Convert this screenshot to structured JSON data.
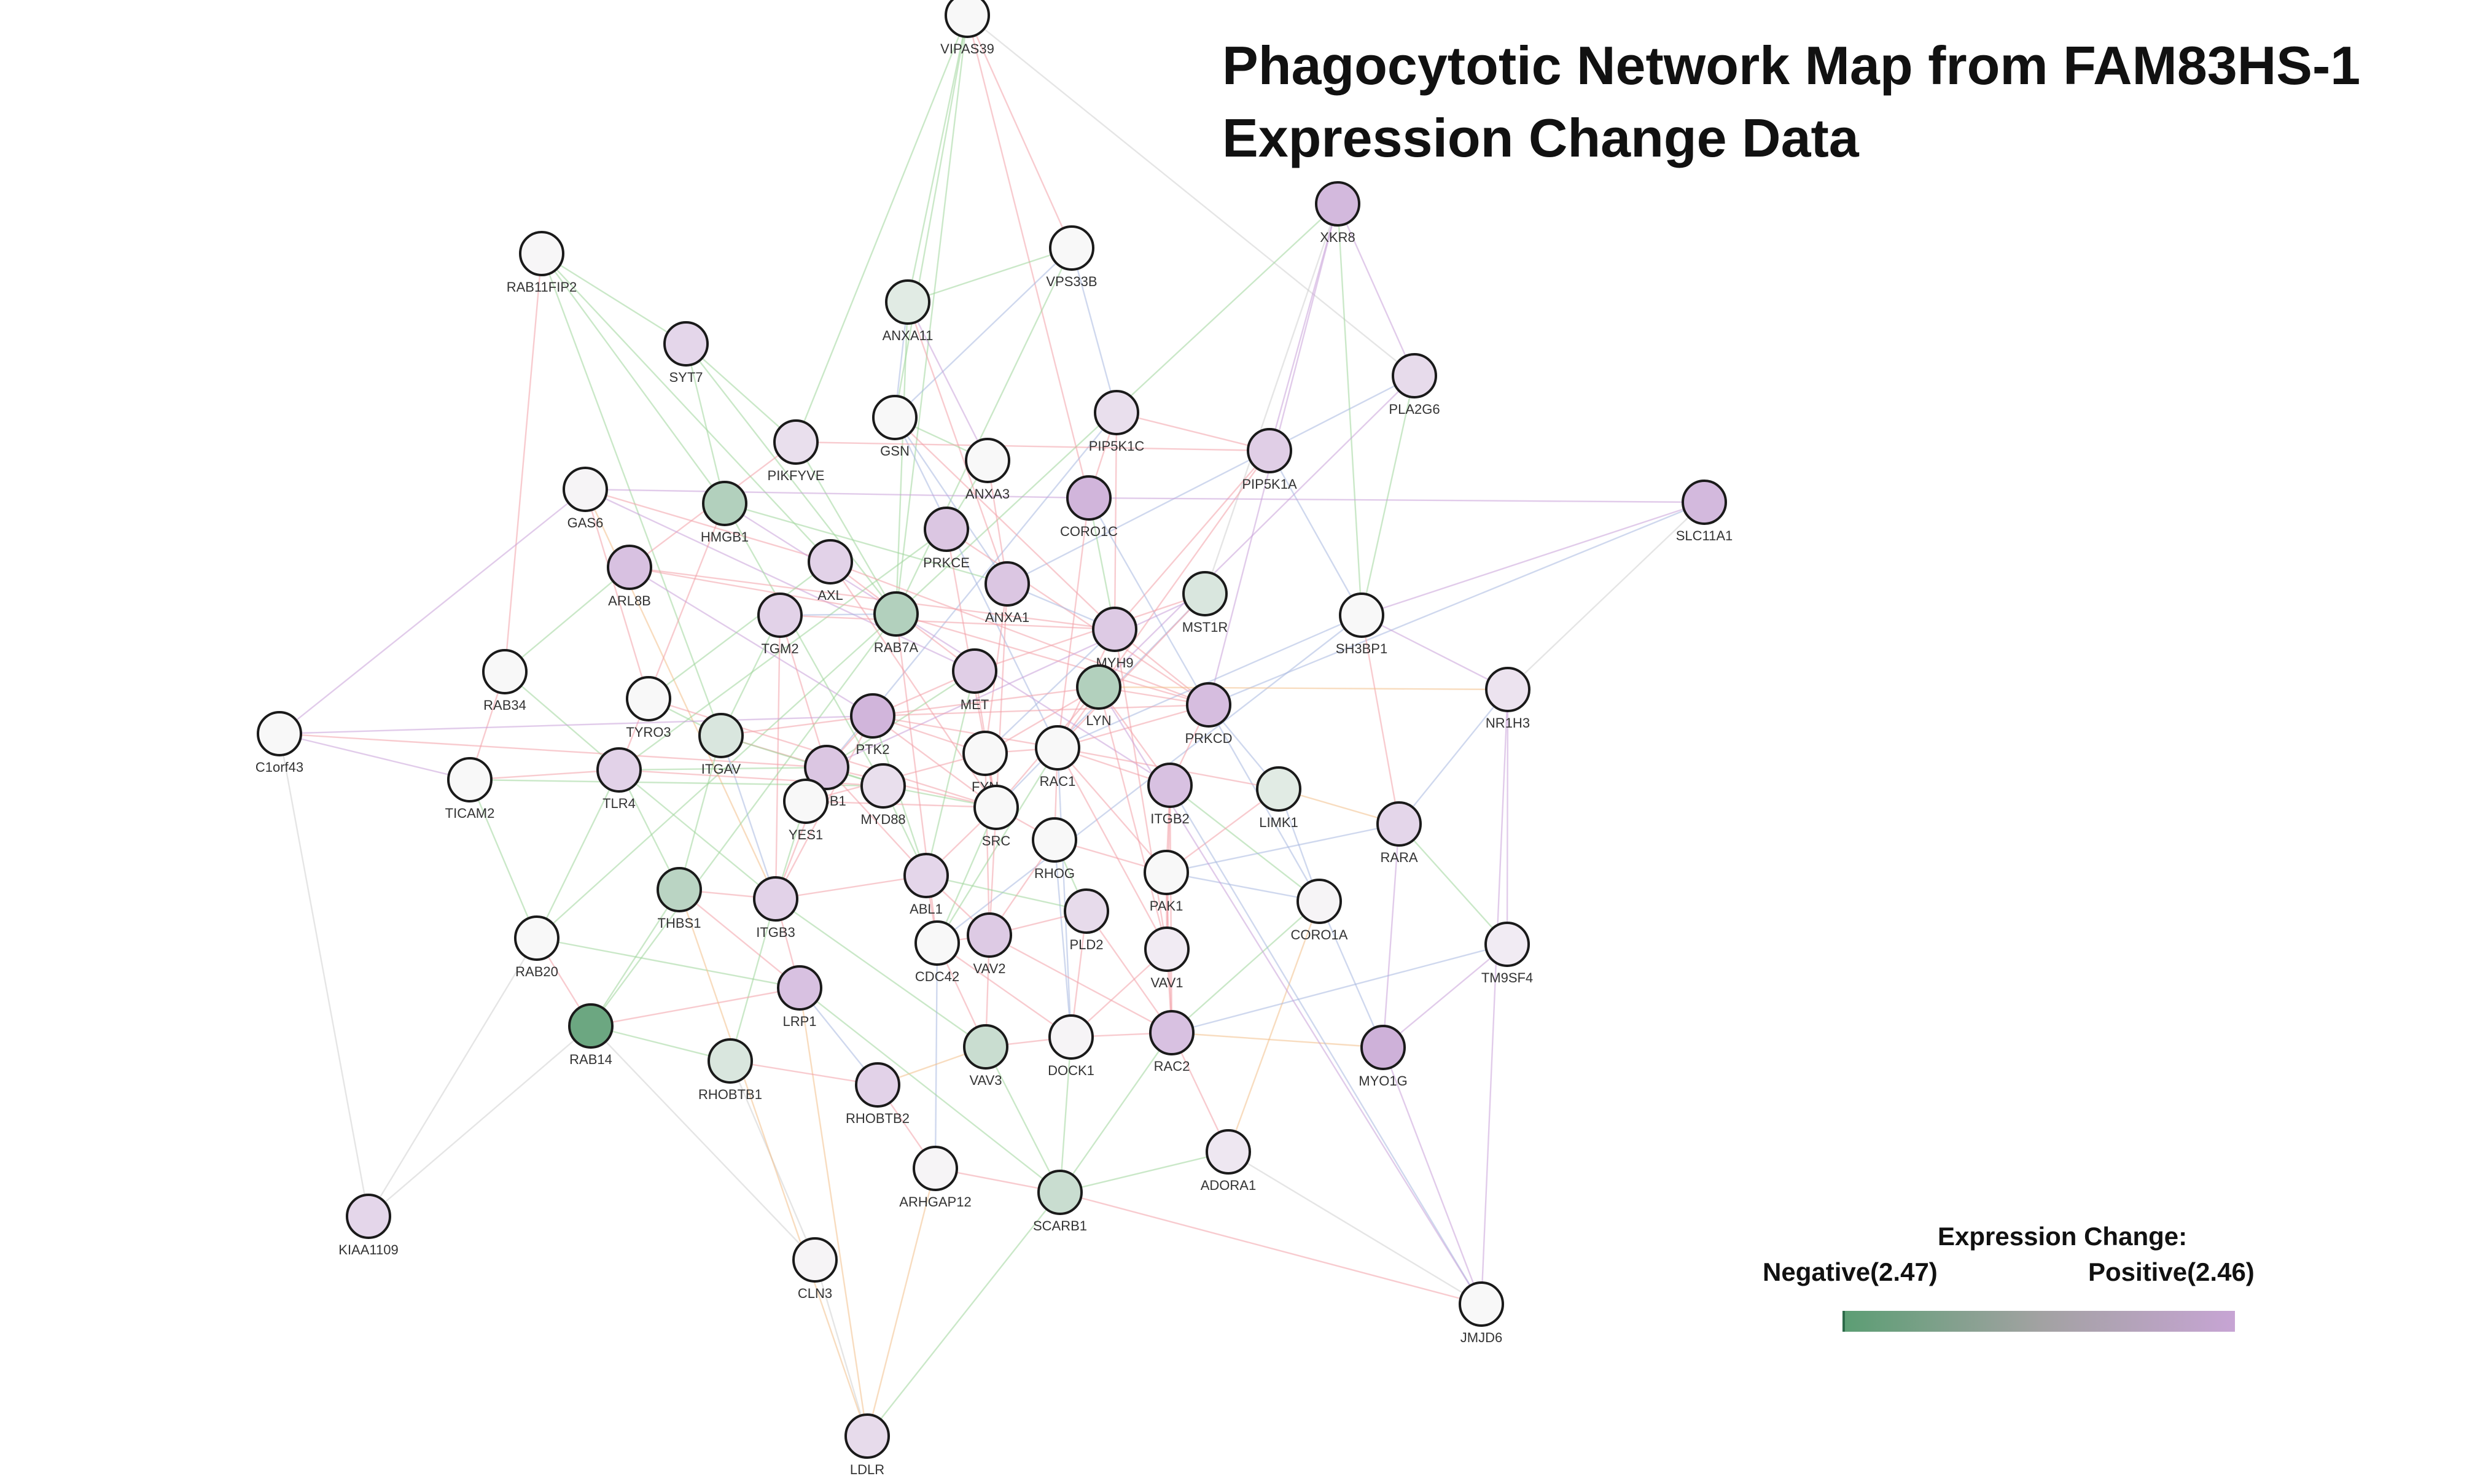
{
  "title": {
    "line1": "Phagocytotic Network Map from FAM83HS-1",
    "line2": "Expression Change Data"
  },
  "legend": {
    "title": "Expression Change:",
    "negative_label": "Negative(2.47)",
    "positive_label": "Positive(2.46)",
    "negative_color": "#5c9e74",
    "mid_color": "#a2a2a2",
    "positive_color": "#c7a4d4"
  },
  "palette": {
    "node_border": "#1a1a1a",
    "edge_colors": [
      "#c8a0d8",
      "#9fd59a",
      "#f2a0a8",
      "#a8b8e0",
      "#f3c08a",
      "#cfcfcf"
    ]
  },
  "nodes": [
    {
      "id": "VIPAS39",
      "expr": 0.0
    },
    {
      "id": "XKR8",
      "expr": 0.75
    },
    {
      "id": "VPS33B",
      "expr": 0.0
    },
    {
      "id": "RAB11FIP2",
      "expr": 0.02
    },
    {
      "id": "ANXA11",
      "expr": -0.15
    },
    {
      "id": "PLA2G6",
      "expr": 0.35
    },
    {
      "id": "SYT7",
      "expr": 0.4
    },
    {
      "id": "GSN",
      "expr": 0.0
    },
    {
      "id": "PIP5K1C",
      "expr": 0.3
    },
    {
      "id": "PIKFYVE",
      "expr": 0.3
    },
    {
      "id": "PIP5K1A",
      "expr": 0.5
    },
    {
      "id": "ANXA3",
      "expr": 0.0
    },
    {
      "id": "SLC11A1",
      "expr": 0.75
    },
    {
      "id": "GAS6",
      "expr": 0.05
    },
    {
      "id": "HMGB1",
      "expr": -0.45
    },
    {
      "id": "CORO1C",
      "expr": 0.8
    },
    {
      "id": "PRKCE",
      "expr": 0.6
    },
    {
      "id": "ARL8B",
      "expr": 0.65
    },
    {
      "id": "AXL",
      "expr": 0.45
    },
    {
      "id": "ANXA1",
      "expr": 0.6
    },
    {
      "id": "MST1R",
      "expr": -0.2
    },
    {
      "id": "SH3BP1",
      "expr": 0.0
    },
    {
      "id": "TGM2",
      "expr": 0.45
    },
    {
      "id": "RAB7A",
      "expr": -0.45
    },
    {
      "id": "MYH9",
      "expr": 0.55
    },
    {
      "id": "RAB34",
      "expr": 0.0
    },
    {
      "id": "MET",
      "expr": 0.5
    },
    {
      "id": "NR1H3",
      "expr": 0.25
    },
    {
      "id": "TYRO3",
      "expr": 0.0
    },
    {
      "id": "LYN",
      "expr": -0.45
    },
    {
      "id": "PRKCD",
      "expr": 0.7
    },
    {
      "id": "C1orf43",
      "expr": 0.0
    },
    {
      "id": "PTK2",
      "expr": 0.8
    },
    {
      "id": "ITGAV",
      "expr": -0.2
    },
    {
      "id": "FYN",
      "expr": 0.0
    },
    {
      "id": "RAC1",
      "expr": 0.0
    },
    {
      "id": "TICAM2",
      "expr": 0.0
    },
    {
      "id": "TLR4",
      "expr": 0.45
    },
    {
      "id": "ITGB1",
      "expr": 0.6
    },
    {
      "id": "MYD88",
      "expr": 0.3
    },
    {
      "id": "ITGB2",
      "expr": 0.65
    },
    {
      "id": "LIMK1",
      "expr": -0.15
    },
    {
      "id": "YES1",
      "expr": 0.0
    },
    {
      "id": "SRC",
      "expr": 0.0
    },
    {
      "id": "RARA",
      "expr": 0.4
    },
    {
      "id": "RHOG",
      "expr": 0.0
    },
    {
      "id": "THBS1",
      "expr": -0.4
    },
    {
      "id": "ITGB3",
      "expr": 0.45
    },
    {
      "id": "ABL1",
      "expr": 0.4
    },
    {
      "id": "PAK1",
      "expr": 0.0
    },
    {
      "id": "CORO1A",
      "expr": 0.05
    },
    {
      "id": "RAB20",
      "expr": 0.0
    },
    {
      "id": "PLD2",
      "expr": 0.35
    },
    {
      "id": "VAV2",
      "expr": 0.55
    },
    {
      "id": "CDC42",
      "expr": 0.0
    },
    {
      "id": "VAV1",
      "expr": 0.15
    },
    {
      "id": "TM9SF4",
      "expr": 0.15
    },
    {
      "id": "LRP1",
      "expr": 0.65
    },
    {
      "id": "RAB14",
      "expr": -0.9
    },
    {
      "id": "VAV3",
      "expr": -0.3
    },
    {
      "id": "DOCK1",
      "expr": 0.05
    },
    {
      "id": "RAC2",
      "expr": 0.65
    },
    {
      "id": "MYO1G",
      "expr": 0.85
    },
    {
      "id": "RHOBTB1",
      "expr": -0.2
    },
    {
      "id": "RHOBTB2",
      "expr": 0.45
    },
    {
      "id": "ARHGAP12",
      "expr": 0.05
    },
    {
      "id": "SCARB1",
      "expr": -0.3
    },
    {
      "id": "ADORA1",
      "expr": 0.2
    },
    {
      "id": "KIAA1109",
      "expr": 0.4
    },
    {
      "id": "CLN3",
      "expr": 0.05
    },
    {
      "id": "JMJD6",
      "expr": 0.0
    },
    {
      "id": "LDLR",
      "expr": 0.35
    }
  ],
  "edges": [
    [
      "VIPAS39",
      "VPS33B",
      2
    ],
    [
      "VIPAS39",
      "ANXA11",
      1
    ],
    [
      "VIPAS39",
      "GSN",
      1
    ],
    [
      "VIPAS39",
      "PIKFYVE",
      1
    ],
    [
      "VIPAS39",
      "CORO1C",
      2
    ],
    [
      "VIPAS39",
      "PLA2G6",
      5
    ],
    [
      "VIPAS39",
      "RAB7A",
      1
    ],
    [
      "XKR8",
      "PIP5K1A",
      0
    ],
    [
      "XKR8",
      "SH3BP1",
      1
    ],
    [
      "XKR8",
      "PLA2G6",
      0
    ],
    [
      "XKR8",
      "RAB7A",
      1
    ],
    [
      "XKR8",
      "MST1R",
      5
    ],
    [
      "XKR8",
      "PRKCD",
      0
    ],
    [
      "VPS33B",
      "ANXA11",
      1
    ],
    [
      "VPS33B",
      "GSN",
      3
    ],
    [
      "VPS33B",
      "RAB7A",
      1
    ],
    [
      "VPS33B",
      "PIP5K1C",
      3
    ],
    [
      "RAB11FIP2",
      "SYT7",
      1
    ],
    [
      "RAB11FIP2",
      "HMGB1",
      1
    ],
    [
      "RAB11FIP2",
      "RAB34",
      2
    ],
    [
      "RAB11FIP2",
      "AXL",
      1
    ],
    [
      "RAB11FIP2",
      "ITGAV",
      1
    ],
    [
      "ANXA11",
      "ANXA3",
      0
    ],
    [
      "ANXA11",
      "ANXA1",
      2
    ],
    [
      "ANXA11",
      "GSN",
      3
    ],
    [
      "ANXA11",
      "RAB7A",
      1
    ],
    [
      "PLA2G6",
      "SH3BP1",
      1
    ],
    [
      "PLA2G6",
      "LYN",
      0
    ],
    [
      "PLA2G6",
      "ANXA1",
      3
    ],
    [
      "SYT7",
      "PIKFYVE",
      1
    ],
    [
      "SYT7",
      "RAB7A",
      1
    ],
    [
      "SYT7",
      "HMGB1",
      1
    ],
    [
      "GSN",
      "ANXA3",
      1
    ],
    [
      "GSN",
      "ANXA1",
      3
    ],
    [
      "GSN",
      "MYH9",
      2
    ],
    [
      "GSN",
      "RAC1",
      3
    ],
    [
      "PIP5K1C",
      "PIP5K1A",
      2
    ],
    [
      "PIP5K1C",
      "CORO1C",
      2
    ],
    [
      "PIP5K1C",
      "ITGB1",
      3
    ],
    [
      "PIP5K1C",
      "MYH9",
      2
    ],
    [
      "PIKFYVE",
      "PIP5K1A",
      2
    ],
    [
      "PIKFYVE",
      "RAB7A",
      1
    ],
    [
      "PIKFYVE",
      "ARL8B",
      2
    ],
    [
      "PIP5K1A",
      "SH3BP1",
      3
    ],
    [
      "PIP5K1A",
      "RAC1",
      2
    ],
    [
      "PIP5K1A",
      "MYH9",
      2
    ],
    [
      "ANXA3",
      "ANXA1",
      2
    ],
    [
      "ANXA3",
      "PRKCE",
      1
    ],
    [
      "SLC11A1",
      "SH3BP1",
      0
    ],
    [
      "SLC11A1",
      "NR1H3",
      5
    ],
    [
      "SLC11A1",
      "CORO1C",
      0
    ],
    [
      "SLC11A1",
      "PRKCD",
      3
    ],
    [
      "GAS6",
      "AXL",
      2
    ],
    [
      "GAS6",
      "TYRO3",
      2
    ],
    [
      "GAS6",
      "MET",
      0
    ],
    [
      "GAS6",
      "CORO1C",
      0
    ],
    [
      "GAS6",
      "C1orf43",
      0
    ],
    [
      "GAS6",
      "ITGB3",
      4
    ],
    [
      "HMGB1",
      "TLR4",
      2
    ],
    [
      "HMGB1",
      "MYD88",
      1
    ],
    [
      "HMGB1",
      "ITGB2",
      0
    ],
    [
      "HMGB1",
      "ANXA1",
      1
    ],
    [
      "CORO1C",
      "RAC1",
      2
    ],
    [
      "CORO1C",
      "CORO1A",
      3
    ],
    [
      "CORO1C",
      "MYH9",
      1
    ],
    [
      "PRKCE",
      "PRKCD",
      2
    ],
    [
      "PRKCE",
      "SRC",
      2
    ],
    [
      "PRKCE",
      "TLR4",
      1
    ],
    [
      "ARL8B",
      "RAB7A",
      2
    ],
    [
      "ARL8B",
      "RAB34",
      1
    ],
    [
      "ARL8B",
      "PTK2",
      0
    ],
    [
      "ARL8B",
      "MYH9",
      2
    ],
    [
      "AXL",
      "TYRO3",
      1
    ],
    [
      "AXL",
      "MET",
      2
    ],
    [
      "AXL",
      "SRC",
      2
    ],
    [
      "AXL",
      "PRKCD",
      2
    ],
    [
      "ANXA1",
      "MYH9",
      3
    ],
    [
      "ANXA1",
      "SRC",
      2
    ],
    [
      "ANXA1",
      "FYN",
      2
    ],
    [
      "MST1R",
      "MET",
      2
    ],
    [
      "MST1R",
      "SRC",
      3
    ],
    [
      "MST1R",
      "RAC1",
      2
    ],
    [
      "MST1R",
      "ITGB1",
      0
    ],
    [
      "SH3BP1",
      "RAC1",
      3
    ],
    [
      "SH3BP1",
      "CDC42",
      3
    ],
    [
      "SH3BP1",
      "NR1H3",
      0
    ],
    [
      "SH3BP1",
      "RARA",
      2
    ],
    [
      "TGM2",
      "ITGB1",
      2
    ],
    [
      "TGM2",
      "ITGB3",
      2
    ],
    [
      "TGM2",
      "RAB7A",
      3
    ],
    [
      "TGM2",
      "MYH9",
      2
    ],
    [
      "TGM2",
      "ITGAV",
      1
    ],
    [
      "RAB7A",
      "RAB14",
      1
    ],
    [
      "RAB7A",
      "RAB20",
      1
    ],
    [
      "RAB7A",
      "CDC42",
      2
    ],
    [
      "RAB7A",
      "PRKCD",
      2
    ],
    [
      "MYH9",
      "RAC1",
      2
    ],
    [
      "MYH9",
      "PRKCD",
      2
    ],
    [
      "MYH9",
      "FYN",
      3
    ],
    [
      "MYH9",
      "VAV1",
      2
    ],
    [
      "RAB34",
      "TICAM2",
      2
    ],
    [
      "RAB34",
      "TLR4",
      1
    ],
    [
      "MET",
      "SRC",
      2
    ],
    [
      "MET",
      "PTK2",
      2
    ],
    [
      "MET",
      "ITGB1",
      1
    ],
    [
      "MET",
      "ABL1",
      1
    ],
    [
      "NR1H3",
      "RARA",
      3
    ],
    [
      "NR1H3",
      "TM9SF4",
      0
    ],
    [
      "NR1H3",
      "LYN",
      4
    ],
    [
      "NR1H3",
      "JMJD6",
      0
    ],
    [
      "TYRO3",
      "ITGAV",
      1
    ],
    [
      "TYRO3",
      "SRC",
      2
    ],
    [
      "LYN",
      "PRKCD",
      2
    ],
    [
      "LYN",
      "SRC",
      2
    ],
    [
      "LYN",
      "FYN",
      2
    ],
    [
      "LYN",
      "ITGB2",
      2
    ],
    [
      "LYN",
      "VAV1",
      2
    ],
    [
      "LYN",
      "PTK2",
      2
    ],
    [
      "PRKCD",
      "RAC1",
      2
    ],
    [
      "PRKCD",
      "ITGB2",
      2
    ],
    [
      "PRKCD",
      "LIMK1",
      3
    ],
    [
      "PRKCD",
      "PTK2",
      2
    ],
    [
      "C1orf43",
      "PTK2",
      0
    ],
    [
      "C1orf43",
      "TICAM2",
      0
    ],
    [
      "C1orf43",
      "KIAA1109",
      5
    ],
    [
      "C1orf43",
      "ITGB1",
      2
    ],
    [
      "PTK2",
      "SRC",
      2
    ],
    [
      "PTK2",
      "FYN",
      2
    ],
    [
      "PTK2",
      "RAC1",
      2
    ],
    [
      "PTK2",
      "ITGB1",
      2
    ],
    [
      "PTK2",
      "ITGAV",
      2
    ],
    [
      "PTK2",
      "ITGB3",
      2
    ],
    [
      "PTK2",
      "ABL1",
      1
    ],
    [
      "ITGAV",
      "ITGB1",
      2
    ],
    [
      "ITGAV",
      "ITGB3",
      3
    ],
    [
      "ITGAV",
      "THBS1",
      1
    ],
    [
      "ITGAV",
      "MYD88",
      1
    ],
    [
      "FYN",
      "SRC",
      2
    ],
    [
      "FYN",
      "RAC1",
      2
    ],
    [
      "FYN",
      "YES1",
      2
    ],
    [
      "FYN",
      "VAV2",
      2
    ],
    [
      "RAC1",
      "RHOG",
      2
    ],
    [
      "RAC1",
      "PAK1",
      2
    ],
    [
      "RAC1",
      "CDC42",
      1
    ],
    [
      "RAC1",
      "VAV1",
      2
    ],
    [
      "RAC1",
      "DOCK1",
      3
    ],
    [
      "RAC1",
      "ITGB2",
      2
    ],
    [
      "TICAM2",
      "TLR4",
      2
    ],
    [
      "TICAM2",
      "MYD88",
      1
    ],
    [
      "TICAM2",
      "RAB20",
      1
    ],
    [
      "TLR4",
      "MYD88",
      2
    ],
    [
      "TLR4",
      "ITGB1",
      1
    ],
    [
      "TLR4",
      "ITGB3",
      1
    ],
    [
      "TLR4",
      "THBS1",
      1
    ],
    [
      "ITGB1",
      "ITGB3",
      2
    ],
    [
      "ITGB1",
      "SRC",
      2
    ],
    [
      "ITGB1",
      "YES1",
      2
    ],
    [
      "ITGB1",
      "MYD88",
      1
    ],
    [
      "ITGB1",
      "ABL1",
      2
    ],
    [
      "MYD88",
      "SRC",
      1
    ],
    [
      "MYD88",
      "ABL1",
      1
    ],
    [
      "ITGB2",
      "VAV1",
      2
    ],
    [
      "ITGB2",
      "RAC2",
      2
    ],
    [
      "ITGB2",
      "PAK1",
      2
    ],
    [
      "ITGB2",
      "CORO1A",
      1
    ],
    [
      "LIMK1",
      "PAK1",
      2
    ],
    [
      "LIMK1",
      "RAC1",
      2
    ],
    [
      "LIMK1",
      "RARA",
      4
    ],
    [
      "LIMK1",
      "CORO1A",
      3
    ],
    [
      "YES1",
      "SRC",
      2
    ],
    [
      "YES1",
      "ITGB3",
      1
    ],
    [
      "SRC",
      "RHOG",
      2
    ],
    [
      "SRC",
      "ABL1",
      2
    ],
    [
      "SRC",
      "VAV2",
      2
    ],
    [
      "SRC",
      "CDC42",
      1
    ],
    [
      "RARA",
      "TM9SF4",
      1
    ],
    [
      "RARA",
      "MYO1G",
      0
    ],
    [
      "RARA",
      "PAK1",
      3
    ],
    [
      "RHOG",
      "PAK1",
      2
    ],
    [
      "RHOG",
      "VAV2",
      2
    ],
    [
      "RHOG",
      "DOCK1",
      3
    ],
    [
      "RHOG",
      "PLD2",
      1
    ],
    [
      "THBS1",
      "ITGB3",
      2
    ],
    [
      "THBS1",
      "LRP1",
      2
    ],
    [
      "THBS1",
      "RAB14",
      1
    ],
    [
      "ITGB3",
      "ABL1",
      2
    ],
    [
      "ITGB3",
      "LRP1",
      2
    ],
    [
      "ITGB3",
      "VAV3",
      1
    ],
    [
      "ITGB3",
      "RHOBTB1",
      1
    ],
    [
      "ABL1",
      "CDC42",
      2
    ],
    [
      "ABL1",
      "VAV2",
      2
    ],
    [
      "ABL1",
      "PLD2",
      1
    ],
    [
      "PAK1",
      "VAV1",
      2
    ],
    [
      "PAK1",
      "RAC2",
      2
    ],
    [
      "PAK1",
      "CORO1A",
      3
    ],
    [
      "CORO1A",
      "RAC2",
      1
    ],
    [
      "CORO1A",
      "MYO1G",
      3
    ],
    [
      "CORO1A",
      "ADORA1",
      4
    ],
    [
      "RAB20",
      "RAB14",
      2
    ],
    [
      "RAB20",
      "LRP1",
      1
    ],
    [
      "RAB20",
      "TLR4",
      1
    ],
    [
      "PLD2",
      "VAV2",
      2
    ],
    [
      "PLD2",
      "DOCK1",
      2
    ],
    [
      "PLD2",
      "RAC2",
      2
    ],
    [
      "VAV2",
      "CDC42",
      2
    ],
    [
      "VAV2",
      "VAV3",
      2
    ],
    [
      "VAV2",
      "RAC2",
      2
    ],
    [
      "CDC42",
      "VAV3",
      2
    ],
    [
      "CDC42",
      "ARHGAP12",
      3
    ],
    [
      "CDC42",
      "DOCK1",
      2
    ],
    [
      "VAV1",
      "RAC2",
      2
    ],
    [
      "VAV1",
      "DOCK1",
      2
    ],
    [
      "TM9SF4",
      "MYO1G",
      0
    ],
    [
      "TM9SF4",
      "RAC2",
      3
    ],
    [
      "LRP1",
      "RAB14",
      2
    ],
    [
      "LRP1",
      "RHOBTB2",
      3
    ],
    [
      "LRP1",
      "SCARB1",
      1
    ],
    [
      "LRP1",
      "LDLR",
      4
    ],
    [
      "RAB14",
      "RHOBTB1",
      1
    ],
    [
      "RAB14",
      "KIAA1109",
      5
    ],
    [
      "RAB14",
      "CLN3",
      5
    ],
    [
      "VAV3",
      "DOCK1",
      2
    ],
    [
      "VAV3",
      "SCARB1",
      1
    ],
    [
      "VAV3",
      "RHOBTB2",
      4
    ],
    [
      "DOCK1",
      "RAC2",
      2
    ],
    [
      "DOCK1",
      "SCARB1",
      1
    ],
    [
      "RAC2",
      "ADORA1",
      2
    ],
    [
      "RAC2",
      "MYO1G",
      4
    ],
    [
      "RAC2",
      "SCARB1",
      1
    ],
    [
      "RHOBTB1",
      "RHOBTB2",
      2
    ],
    [
      "RHOBTB1",
      "CLN3",
      5
    ],
    [
      "RHOBTB2",
      "ARHGAP12",
      2
    ],
    [
      "ARHGAP12",
      "SCARB1",
      2
    ],
    [
      "ARHGAP12",
      "LDLR",
      4
    ],
    [
      "SCARB1",
      "LDLR",
      1
    ],
    [
      "SCARB1",
      "ADORA1",
      1
    ],
    [
      "SCARB1",
      "JMJD6",
      2
    ],
    [
      "ADORA1",
      "JMJD6",
      5
    ],
    [
      "CLN3",
      "LDLR",
      5
    ],
    [
      "KIAA1109",
      "RAB20",
      5
    ],
    [
      "MYO1G",
      "JMJD6",
      0
    ],
    [
      "LDLR",
      "THBS1",
      4
    ],
    [
      "JMJD6",
      "ITGB2",
      3
    ],
    [
      "JMJD6",
      "LYN",
      0
    ]
  ]
}
